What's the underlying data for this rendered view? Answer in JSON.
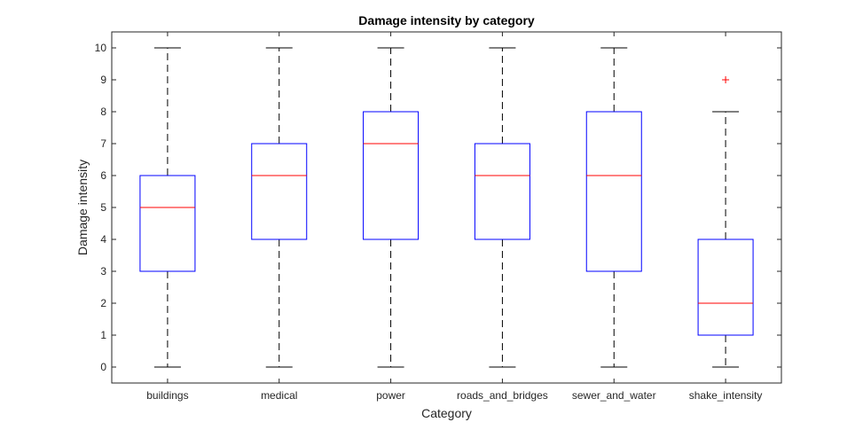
{
  "chart_data": {
    "type": "box",
    "title": "Damage intensity by category",
    "xlabel": "Category",
    "ylabel": "Damage intensity",
    "ylim": [
      -0.5,
      10.5
    ],
    "yticks": [
      0,
      1,
      2,
      3,
      4,
      5,
      6,
      7,
      8,
      9,
      10
    ],
    "grid": false,
    "categories": [
      "buildings",
      "medical",
      "power",
      "roads_and_bridges",
      "sewer_and_water",
      "shake_intensity"
    ],
    "boxes": [
      {
        "category": "buildings",
        "whisker_low": 0,
        "q1": 3,
        "median": 5,
        "q3": 6,
        "whisker_high": 10,
        "outliers": []
      },
      {
        "category": "medical",
        "whisker_low": 0,
        "q1": 4,
        "median": 6,
        "q3": 7,
        "whisker_high": 10,
        "outliers": []
      },
      {
        "category": "power",
        "whisker_low": 0,
        "q1": 4,
        "median": 7,
        "q3": 8,
        "whisker_high": 10,
        "outliers": []
      },
      {
        "category": "roads_and_bridges",
        "whisker_low": 0,
        "q1": 4,
        "median": 6,
        "q3": 7,
        "whisker_high": 10,
        "outliers": []
      },
      {
        "category": "sewer_and_water",
        "whisker_low": 0,
        "q1": 3,
        "median": 6,
        "q3": 8,
        "whisker_high": 10,
        "outliers": []
      },
      {
        "category": "shake_intensity",
        "whisker_low": 0,
        "q1": 1,
        "median": 2,
        "q3": 4,
        "whisker_high": 8,
        "outliers": [
          9
        ]
      }
    ],
    "colors": {
      "box": "#0000ff",
      "median": "#ff0000",
      "whisker": "#000000",
      "outlier": "#ff0000",
      "axis": "#262626"
    }
  }
}
